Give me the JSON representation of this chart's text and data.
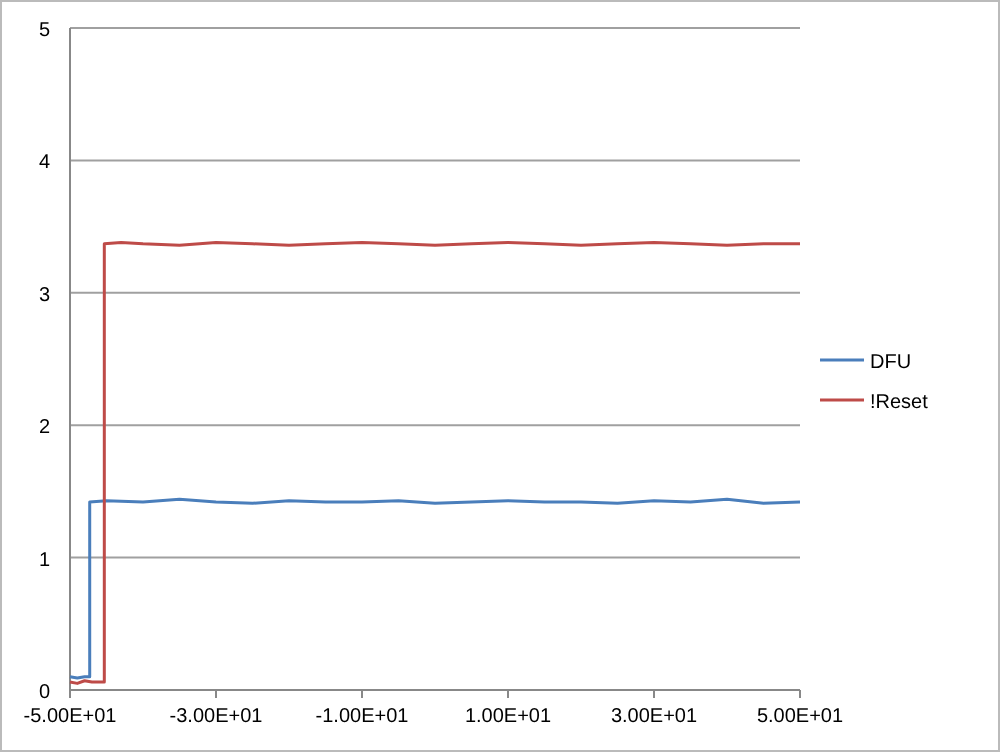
{
  "chart_data": {
    "type": "line",
    "xlim": [
      -50,
      50
    ],
    "ylim": [
      0,
      5
    ],
    "xticks": [
      {
        "value": -50,
        "label": "-5.00E+01"
      },
      {
        "value": -30,
        "label": "-3.00E+01"
      },
      {
        "value": -10,
        "label": "-1.00E+01"
      },
      {
        "value": 10,
        "label": "1.00E+01"
      },
      {
        "value": 30,
        "label": "3.00E+01"
      },
      {
        "value": 50,
        "label": "5.00E+01"
      }
    ],
    "yticks": [
      0,
      1,
      2,
      3,
      4,
      5
    ],
    "grid": "y",
    "legend": "right",
    "marker": "none",
    "line_style": "solid",
    "series": [
      {
        "name": "DFU",
        "color": "#4a7ebb",
        "x": [
          -50,
          -49,
          -48,
          -47.3,
          -47.3,
          -45,
          -40,
          -35,
          -30,
          -25,
          -20,
          -15,
          -10,
          -5,
          0,
          5,
          10,
          15,
          20,
          25,
          30,
          35,
          40,
          45,
          50
        ],
        "values": [
          0.1,
          0.09,
          0.1,
          0.1,
          1.42,
          1.43,
          1.42,
          1.44,
          1.42,
          1.41,
          1.43,
          1.42,
          1.42,
          1.43,
          1.41,
          1.42,
          1.43,
          1.42,
          1.42,
          1.41,
          1.43,
          1.42,
          1.44,
          1.41,
          1.42
        ]
      },
      {
        "name": "!Reset",
        "color": "#be4b48",
        "x": [
          -50,
          -49,
          -48,
          -47,
          -45.3,
          -45.3,
          -43,
          -40,
          -35,
          -30,
          -25,
          -20,
          -15,
          -10,
          -5,
          0,
          5,
          10,
          15,
          20,
          25,
          30,
          35,
          40,
          45,
          50
        ],
        "values": [
          0.06,
          0.05,
          0.07,
          0.06,
          0.06,
          3.37,
          3.38,
          3.37,
          3.36,
          3.38,
          3.37,
          3.36,
          3.37,
          3.38,
          3.37,
          3.36,
          3.37,
          3.38,
          3.37,
          3.36,
          3.37,
          3.38,
          3.37,
          3.36,
          3.37,
          3.37
        ]
      }
    ]
  }
}
